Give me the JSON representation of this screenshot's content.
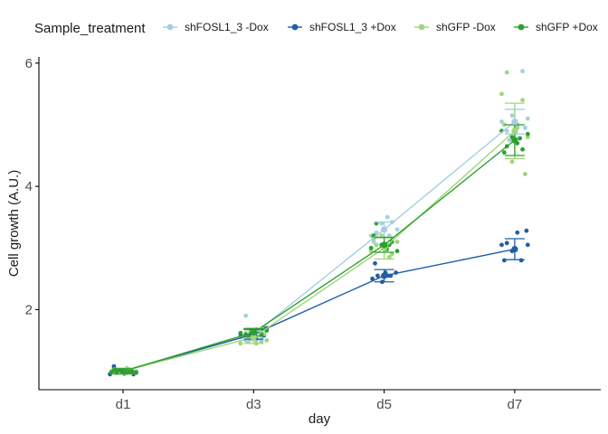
{
  "chart_data": {
    "type": "line",
    "xlabel": "day",
    "ylabel": "Cell growth (A.U.)",
    "categories": [
      "d1",
      "d3",
      "d5",
      "d7"
    ],
    "ylim": [
      0.7,
      6.1
    ],
    "yticks": [
      2,
      4,
      6
    ],
    "grid": false,
    "legend": {
      "title": "Sample_treatment",
      "position": "top"
    },
    "series": [
      {
        "name": "shFOSL1_3 -Dox",
        "color": "#a6cee3",
        "means": [
          1.0,
          1.6,
          3.3,
          5.05
        ],
        "errors": [
          0.04,
          0.1,
          0.12,
          0.2
        ],
        "points": [
          [
            [
              -0.18,
              1.0
            ],
            [
              -0.1,
              1.03
            ],
            [
              -0.02,
              0.98
            ],
            [
              0.06,
              1.02
            ],
            [
              0.14,
              0.97
            ],
            [
              0.2,
              1.0
            ],
            [
              -0.14,
              1.05
            ],
            [
              0.1,
              1.0
            ]
          ],
          [
            [
              -0.2,
              1.55
            ],
            [
              -0.12,
              1.9
            ],
            [
              -0.04,
              1.6
            ],
            [
              0.05,
              1.62
            ],
            [
              0.12,
              1.55
            ],
            [
              0.2,
              1.68
            ],
            [
              -0.08,
              1.48
            ],
            [
              0.16,
              1.6
            ]
          ],
          [
            [
              -0.2,
              3.2
            ],
            [
              -0.12,
              3.25
            ],
            [
              -0.04,
              3.4
            ],
            [
              0.05,
              3.5
            ],
            [
              0.12,
              3.42
            ],
            [
              0.2,
              3.3
            ],
            [
              -0.16,
              3.1
            ],
            [
              0.08,
              3.2
            ]
          ],
          [
            [
              -0.2,
              5.05
            ],
            [
              -0.12,
              4.9
            ],
            [
              -0.04,
              5.15
            ],
            [
              0.05,
              5.0
            ],
            [
              0.12,
              5.87
            ],
            [
              0.2,
              5.1
            ],
            [
              -0.08,
              4.75
            ],
            [
              0.16,
              4.95
            ]
          ]
        ]
      },
      {
        "name": "shFOSL1_3 +Dox",
        "color": "#1f5fa6",
        "means": [
          1.0,
          1.6,
          2.55,
          2.98
        ],
        "errors": [
          0.04,
          0.08,
          0.1,
          0.17
        ],
        "points": [
          [
            [
              -0.2,
              0.95
            ],
            [
              -0.14,
              1.08
            ],
            [
              -0.06,
              1.02
            ],
            [
              0.02,
              0.96
            ],
            [
              0.1,
              1.02
            ],
            [
              0.16,
              0.95
            ],
            [
              0.2,
              0.98
            ],
            [
              -0.1,
              0.97
            ]
          ],
          [
            [
              -0.2,
              1.6
            ],
            [
              -0.12,
              1.58
            ],
            [
              -0.04,
              1.62
            ],
            [
              0.04,
              1.52
            ],
            [
              0.12,
              1.6
            ],
            [
              0.2,
              1.7
            ],
            [
              -0.08,
              1.55
            ],
            [
              0.16,
              1.58
            ]
          ],
          [
            [
              -0.18,
              2.5
            ],
            [
              -0.1,
              2.55
            ],
            [
              -0.03,
              2.45
            ],
            [
              0.02,
              2.6
            ],
            [
              0.1,
              2.55
            ],
            [
              0.18,
              2.6
            ],
            [
              -0.14,
              2.75
            ],
            [
              0.06,
              2.55
            ]
          ],
          [
            [
              -0.2,
              3.05
            ],
            [
              -0.12,
              3.08
            ],
            [
              -0.04,
              2.95
            ],
            [
              0.04,
              3.25
            ],
            [
              0.1,
              2.8
            ],
            [
              0.18,
              3.28
            ],
            [
              -0.16,
              2.8
            ],
            [
              0.2,
              3.05
            ]
          ]
        ]
      },
      {
        "name": "shGFP -Dox",
        "color": "#9fd67d",
        "means": [
          1.0,
          1.55,
          3.0,
          4.9
        ],
        "errors": [
          0.05,
          0.1,
          0.18,
          0.45
        ],
        "points": [
          [
            [
              -0.18,
              1.0
            ],
            [
              -0.1,
              1.02
            ],
            [
              -0.02,
              0.98
            ],
            [
              0.06,
              1.05
            ],
            [
              0.14,
              1.0
            ],
            [
              0.2,
              0.97
            ],
            [
              -0.14,
              1.0
            ],
            [
              0.1,
              1.03
            ]
          ],
          [
            [
              -0.2,
              1.45
            ],
            [
              -0.12,
              1.5
            ],
            [
              -0.04,
              1.52
            ],
            [
              0.04,
              1.45
            ],
            [
              0.12,
              1.48
            ],
            [
              0.2,
              1.5
            ],
            [
              -0.08,
              1.55
            ],
            [
              0.16,
              1.6
            ]
          ],
          [
            [
              -0.2,
              2.95
            ],
            [
              -0.12,
              3.05
            ],
            [
              -0.04,
              3.2
            ],
            [
              0.04,
              3.0
            ],
            [
              0.12,
              2.9
            ],
            [
              0.2,
              3.1
            ],
            [
              -0.16,
              3.15
            ],
            [
              0.08,
              2.85
            ]
          ],
          [
            [
              -0.2,
              5.5
            ],
            [
              -0.12,
              5.85
            ],
            [
              -0.04,
              4.4
            ],
            [
              0.04,
              4.95
            ],
            [
              0.12,
              5.4
            ],
            [
              0.2,
              4.8
            ],
            [
              -0.16,
              5.0
            ],
            [
              0.16,
              4.2
            ]
          ]
        ]
      },
      {
        "name": "shGFP +Dox",
        "color": "#2ca02c",
        "means": [
          1.0,
          1.63,
          3.05,
          4.75
        ],
        "errors": [
          0.04,
          0.06,
          0.12,
          0.25
        ],
        "points": [
          [
            [
              -0.18,
              0.98
            ],
            [
              -0.1,
              1.0
            ],
            [
              -0.02,
              1.02
            ],
            [
              0.06,
              0.97
            ],
            [
              0.14,
              1.0
            ],
            [
              0.2,
              0.98
            ],
            [
              -0.14,
              1.02
            ],
            [
              0.1,
              1.0
            ]
          ],
          [
            [
              -0.2,
              1.62
            ],
            [
              -0.12,
              1.6
            ],
            [
              -0.04,
              1.65
            ],
            [
              0.04,
              1.68
            ],
            [
              0.12,
              1.6
            ],
            [
              0.2,
              1.66
            ],
            [
              -0.08,
              1.58
            ],
            [
              0.16,
              1.7
            ]
          ],
          [
            [
              -0.2,
              3.0
            ],
            [
              -0.12,
              3.4
            ],
            [
              -0.04,
              3.05
            ],
            [
              0.04,
              2.98
            ],
            [
              0.12,
              3.1
            ],
            [
              0.2,
              2.95
            ],
            [
              -0.16,
              3.2
            ],
            [
              0.08,
              3.05
            ]
          ],
          [
            [
              -0.2,
              4.9
            ],
            [
              -0.12,
              4.65
            ],
            [
              -0.04,
              4.8
            ],
            [
              0.04,
              4.7
            ],
            [
              0.12,
              4.6
            ],
            [
              0.2,
              4.85
            ],
            [
              -0.16,
              4.55
            ],
            [
              0.08,
              4.78
            ]
          ]
        ]
      }
    ]
  }
}
